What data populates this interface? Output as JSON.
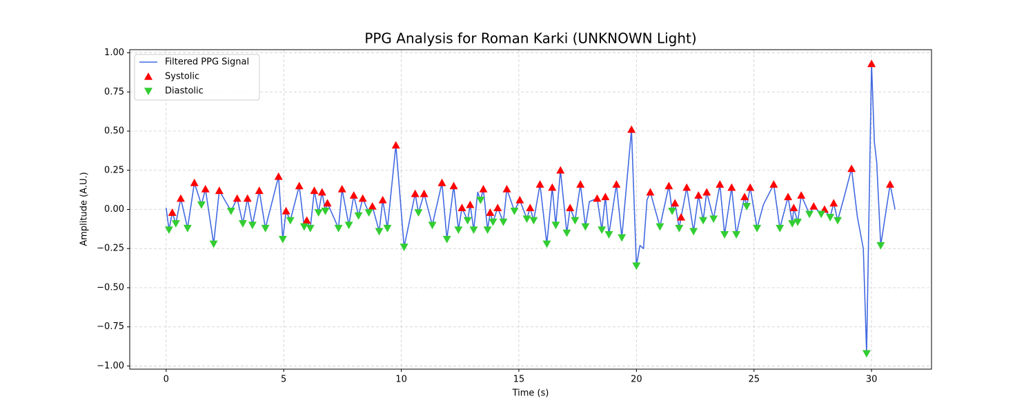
{
  "chart_data": {
    "type": "line",
    "title": "PPG Analysis for Roman Karki (UNKNOWN Light)",
    "xlabel": "Time (s)",
    "ylabel": "Amplitude (A.U.)",
    "xlim": [
      -1.55,
      32.55
    ],
    "ylim": [
      -1.02,
      1.02
    ],
    "xticks": [
      0,
      5,
      10,
      15,
      20,
      25,
      30
    ],
    "yticks": [
      {
        "value": -1,
        "label": "−1.00"
      },
      {
        "value": -0.75,
        "label": "−0.75"
      },
      {
        "value": -0.5,
        "label": "−0.50"
      },
      {
        "value": -0.25,
        "label": "−0.25"
      },
      {
        "value": 0,
        "label": "0.00"
      },
      {
        "value": 0.25,
        "label": "0.25"
      },
      {
        "value": 0.5,
        "label": "0.50"
      },
      {
        "value": 0.75,
        "label": "0.75"
      },
      {
        "value": 1,
        "label": "1.00"
      }
    ],
    "grid": true,
    "legend": "upper-left",
    "series": [
      {
        "name": "Filtered PPG Signal",
        "type": "line",
        "color": "#4169e1",
        "x": [
          0,
          0.12,
          0.26,
          0.41,
          0.62,
          0.91,
          1.2,
          1.5,
          1.67,
          2.02,
          2.26,
          2.76,
          3.02,
          3.26,
          3.46,
          3.67,
          3.96,
          4.22,
          4.78,
          4.96,
          5.1,
          5.28,
          5.66,
          5.87,
          5.98,
          6.13,
          6.3,
          6.48,
          6.63,
          6.77,
          6.86,
          7.33,
          7.48,
          7.77,
          7.98,
          8.18,
          8.36,
          8.62,
          8.77,
          9.06,
          9.21,
          9.41,
          9.77,
          10.12,
          10.59,
          10.73,
          10.97,
          11.32,
          11.73,
          11.94,
          12.23,
          12.43,
          12.58,
          12.82,
          12.93,
          13.08,
          13.25,
          13.37,
          13.49,
          13.67,
          13.78,
          13.9,
          14.1,
          14.34,
          14.49,
          14.81,
          15.04,
          15.34,
          15.48,
          15.63,
          15.9,
          16.19,
          16.42,
          16.57,
          16.77,
          17.04,
          17.18,
          17.39,
          17.62,
          17.83,
          18,
          18.33,
          18.53,
          18.68,
          18.83,
          19.15,
          19.38,
          19.79,
          20,
          20.15,
          20.3,
          20.45,
          20.59,
          21,
          21.38,
          21.52,
          21.64,
          21.82,
          21.9,
          22.14,
          22.43,
          22.64,
          22.84,
          22.99,
          23.28,
          23.55,
          23.75,
          24.05,
          24.25,
          24.6,
          24.69,
          24.84,
          25.13,
          25.4,
          25.84,
          26.1,
          26.45,
          26.63,
          26.69,
          26.86,
          27.01,
          27.36,
          27.54,
          27.86,
          28,
          28.24,
          28.39,
          28.56,
          28.8,
          29.15,
          29.4,
          29.65,
          29.79,
          30,
          30.12,
          30.22,
          30.39,
          30.79,
          31
        ],
        "values": [
          0.01,
          -0.13,
          -0.02,
          -0.09,
          0.07,
          -0.12,
          0.17,
          0.03,
          0.13,
          -0.22,
          0.12,
          -0.01,
          0.07,
          -0.09,
          0.07,
          -0.1,
          0.12,
          -0.12,
          0.21,
          -0.19,
          -0.01,
          -0.07,
          0.15,
          -0.11,
          -0.07,
          -0.12,
          0.12,
          -0.02,
          0.11,
          -0.01,
          0.04,
          -0.12,
          0.13,
          -0.1,
          0.09,
          -0.04,
          0.07,
          -0.02,
          0.02,
          -0.14,
          0.06,
          -0.12,
          0.41,
          -0.24,
          0.1,
          -0.02,
          0.1,
          -0.1,
          0.17,
          -0.19,
          0.15,
          -0.13,
          0.01,
          -0.07,
          0.03,
          -0.13,
          0.11,
          0.06,
          0.13,
          -0.13,
          -0.02,
          -0.08,
          0.01,
          -0.08,
          0.13,
          -0.01,
          0.06,
          -0.06,
          0.01,
          -0.07,
          0.16,
          -0.22,
          0.14,
          -0.1,
          0.25,
          -0.15,
          0.01,
          -0.07,
          0.16,
          -0.11,
          0.05,
          0.07,
          -0.13,
          0.08,
          -0.16,
          0.16,
          -0.18,
          0.51,
          -0.36,
          -0.23,
          -0.25,
          0.06,
          0.11,
          -0.11,
          0.15,
          -0.01,
          0.04,
          -0.12,
          -0.05,
          0.14,
          -0.14,
          0.09,
          -0.07,
          0.11,
          -0.06,
          0.16,
          -0.16,
          0.14,
          -0.16,
          0.08,
          0.02,
          0.14,
          -0.12,
          0.03,
          0.16,
          -0.12,
          0.08,
          -0.09,
          0.01,
          -0.08,
          0.09,
          -0.03,
          0.02,
          -0.03,
          0,
          -0.05,
          0.04,
          -0.07,
          0.06,
          0.26,
          -0.05,
          -0.25,
          -0.92,
          0.93,
          0.43,
          0.3,
          -0.23,
          0.16,
          0
        ]
      },
      {
        "name": "Systolic",
        "type": "scatter",
        "marker": "triangle-up",
        "color": "#ff0000",
        "x": [
          0.26,
          0.62,
          1.2,
          1.67,
          2.26,
          3.02,
          3.46,
          3.96,
          4.78,
          5.1,
          5.66,
          5.98,
          6.3,
          6.63,
          6.86,
          7.48,
          7.98,
          8.36,
          8.77,
          9.21,
          9.77,
          10.59,
          10.97,
          11.73,
          12.23,
          12.58,
          12.93,
          13.49,
          13.78,
          14.1,
          14.49,
          15.04,
          15.48,
          15.9,
          16.42,
          16.77,
          17.18,
          17.62,
          18.33,
          18.68,
          19.15,
          19.79,
          20.59,
          21.38,
          21.64,
          21.9,
          22.14,
          22.64,
          22.99,
          23.55,
          24.05,
          24.6,
          24.84,
          25.84,
          26.45,
          26.69,
          27.01,
          27.54,
          28,
          28.39,
          29.15,
          30,
          30.79
        ],
        "values": [
          -0.02,
          0.07,
          0.17,
          0.13,
          0.12,
          0.07,
          0.07,
          0.12,
          0.21,
          -0.01,
          0.15,
          -0.07,
          0.12,
          0.11,
          0.04,
          0.13,
          0.09,
          0.07,
          0.02,
          0.06,
          0.41,
          0.1,
          0.1,
          0.17,
          0.15,
          0.01,
          0.03,
          0.13,
          -0.02,
          0.01,
          0.13,
          0.06,
          0.01,
          0.16,
          0.14,
          0.25,
          0.01,
          0.16,
          0.07,
          0.08,
          0.16,
          0.51,
          0.11,
          0.15,
          0.04,
          -0.05,
          0.14,
          0.09,
          0.11,
          0.16,
          0.14,
          0.08,
          0.14,
          0.16,
          0.08,
          0.01,
          0.09,
          0.02,
          0,
          0.04,
          0.26,
          0.93,
          0.16
        ]
      },
      {
        "name": "Diastolic",
        "type": "scatter",
        "marker": "triangle-down",
        "color": "#32cd32",
        "x": [
          0.12,
          0.41,
          0.91,
          1.5,
          2.02,
          2.76,
          3.26,
          3.67,
          4.22,
          4.96,
          5.28,
          5.87,
          6.13,
          6.48,
          6.77,
          7.33,
          7.77,
          8.18,
          8.62,
          9.06,
          9.41,
          10.12,
          10.73,
          11.32,
          11.94,
          12.43,
          12.82,
          13.08,
          13.37,
          13.67,
          13.9,
          14.34,
          14.81,
          15.34,
          15.63,
          16.19,
          16.57,
          17.04,
          17.39,
          17.83,
          18.53,
          18.83,
          19.38,
          20,
          21,
          21.52,
          21.82,
          22.43,
          22.84,
          23.28,
          23.75,
          24.25,
          24.69,
          25.13,
          26.1,
          26.63,
          26.86,
          27.36,
          27.86,
          28.24,
          28.56,
          29.79,
          30.39
        ],
        "values": [
          -0.13,
          -0.09,
          -0.12,
          0.03,
          -0.22,
          -0.01,
          -0.09,
          -0.1,
          -0.12,
          -0.19,
          -0.07,
          -0.11,
          -0.12,
          -0.02,
          -0.01,
          -0.12,
          -0.1,
          -0.04,
          -0.02,
          -0.14,
          -0.12,
          -0.24,
          -0.02,
          -0.1,
          -0.19,
          -0.13,
          -0.07,
          -0.13,
          0.06,
          -0.13,
          -0.08,
          -0.08,
          -0.01,
          -0.06,
          -0.07,
          -0.22,
          -0.1,
          -0.15,
          -0.07,
          -0.11,
          -0.13,
          -0.16,
          -0.18,
          -0.36,
          -0.11,
          -0.01,
          -0.12,
          -0.14,
          -0.07,
          -0.06,
          -0.16,
          -0.16,
          0.02,
          -0.12,
          -0.12,
          -0.09,
          -0.08,
          -0.03,
          -0.03,
          -0.05,
          -0.07,
          -0.92,
          -0.23
        ]
      }
    ]
  }
}
